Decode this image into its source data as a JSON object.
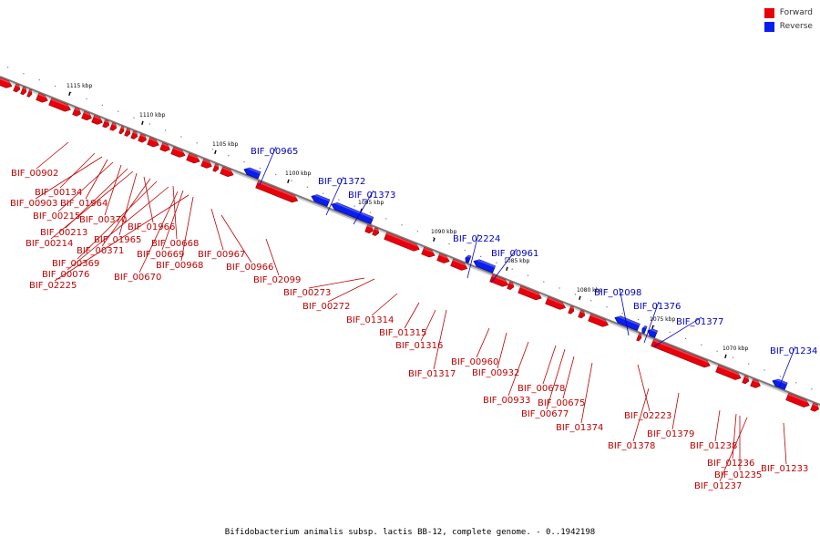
{
  "legend": {
    "forward_label": "Forward",
    "reverse_label": "Reverse",
    "forward_color": "#e8000b",
    "reverse_color": "#0a1ef0"
  },
  "caption": "Bifidobacterium animalis subsp. lactis BB-12, complete genome. - 0..1942198",
  "scale": {
    "unit": "kbp",
    "ticks": [
      {
        "kbp": 1115,
        "label": "1115 kbp"
      },
      {
        "kbp": 1110,
        "label": "1110 kbp"
      },
      {
        "kbp": 1105,
        "label": "1105 kbp"
      },
      {
        "kbp": 1100,
        "label": "1100 kbp"
      },
      {
        "kbp": 1095,
        "label": "1095 kbp"
      },
      {
        "kbp": 1090,
        "label": "1090 kbp"
      },
      {
        "kbp": 1085,
        "label": "1085 kbp"
      },
      {
        "kbp": 1080,
        "label": "1080 kbp"
      },
      {
        "kbp": 1075,
        "label": "1075 kbp"
      },
      {
        "kbp": 1070,
        "label": "1070 kbp"
      }
    ]
  },
  "genes": [
    {
      "id": "BIF_00902",
      "strand": "forward"
    },
    {
      "id": "BIF_00134",
      "strand": "forward"
    },
    {
      "id": "BIF_00903",
      "strand": "forward"
    },
    {
      "id": "BIF_01964",
      "strand": "forward"
    },
    {
      "id": "BIF_00215",
      "strand": "forward"
    },
    {
      "id": "BIF_00370",
      "strand": "forward"
    },
    {
      "id": "BIF_00213",
      "strand": "forward"
    },
    {
      "id": "BIF_01966",
      "strand": "forward"
    },
    {
      "id": "BIF_00214",
      "strand": "forward"
    },
    {
      "id": "BIF_01965",
      "strand": "forward"
    },
    {
      "id": "BIF_00668",
      "strand": "forward"
    },
    {
      "id": "BIF_00371",
      "strand": "forward"
    },
    {
      "id": "BIF_00669",
      "strand": "forward"
    },
    {
      "id": "BIF_00967",
      "strand": "forward"
    },
    {
      "id": "BIF_00369",
      "strand": "forward"
    },
    {
      "id": "BIF_00968",
      "strand": "forward"
    },
    {
      "id": "BIF_00966",
      "strand": "forward"
    },
    {
      "id": "BIF_00076",
      "strand": "forward"
    },
    {
      "id": "BIF_00670",
      "strand": "forward"
    },
    {
      "id": "BIF_02099",
      "strand": "forward"
    },
    {
      "id": "BIF_02225",
      "strand": "forward"
    },
    {
      "id": "BIF_00965",
      "strand": "reverse"
    },
    {
      "id": "BIF_01372",
      "strand": "reverse"
    },
    {
      "id": "BIF_01373",
      "strand": "reverse"
    },
    {
      "id": "BIF_00273",
      "strand": "forward"
    },
    {
      "id": "BIF_00272",
      "strand": "forward"
    },
    {
      "id": "BIF_01314",
      "strand": "forward"
    },
    {
      "id": "BIF_01315",
      "strand": "forward"
    },
    {
      "id": "BIF_01316",
      "strand": "forward"
    },
    {
      "id": "BIF_01317",
      "strand": "forward"
    },
    {
      "id": "BIF_02224",
      "strand": "reverse"
    },
    {
      "id": "BIF_00961",
      "strand": "reverse"
    },
    {
      "id": "BIF_00960",
      "strand": "forward"
    },
    {
      "id": "BIF_00932",
      "strand": "forward"
    },
    {
      "id": "BIF_00933",
      "strand": "forward"
    },
    {
      "id": "BIF_00678",
      "strand": "forward"
    },
    {
      "id": "BIF_00677",
      "strand": "forward"
    },
    {
      "id": "BIF_00675",
      "strand": "forward"
    },
    {
      "id": "BIF_01374",
      "strand": "forward"
    },
    {
      "id": "BIF_02098",
      "strand": "reverse"
    },
    {
      "id": "BIF_01376",
      "strand": "reverse"
    },
    {
      "id": "BIF_01377",
      "strand": "reverse"
    },
    {
      "id": "BIF_02223",
      "strand": "forward"
    },
    {
      "id": "BIF_01378",
      "strand": "forward"
    },
    {
      "id": "BIF_01379",
      "strand": "forward"
    },
    {
      "id": "BIF_01238",
      "strand": "forward"
    },
    {
      "id": "BIF_01236",
      "strand": "forward"
    },
    {
      "id": "BIF_01235",
      "strand": "forward"
    },
    {
      "id": "BIF_01237",
      "strand": "forward"
    },
    {
      "id": "BIF_01233",
      "strand": "forward"
    },
    {
      "id": "BIF_01234",
      "strand": "reverse"
    }
  ]
}
